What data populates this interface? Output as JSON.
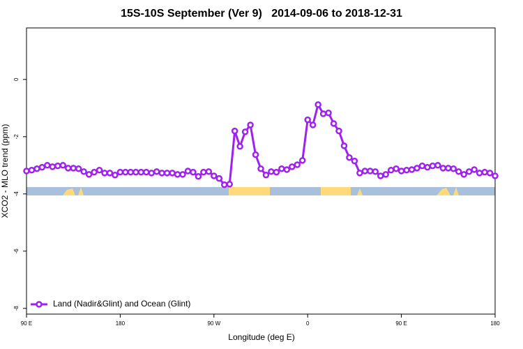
{
  "chart_data": {
    "type": "line",
    "title": "15S-10S September (Ver 9)   2014-09-06 to 2018-12-31",
    "xlabel": "Longitude (deg E)",
    "ylabel": "XCO2 - MLO trend (ppm)",
    "x": [
      90,
      95,
      100,
      105,
      110,
      115,
      120,
      125,
      130,
      135,
      140,
      145,
      150,
      155,
      160,
      165,
      170,
      175,
      180,
      185,
      190,
      195,
      200,
      205,
      210,
      215,
      220,
      225,
      230,
      235,
      240,
      245,
      250,
      255,
      260,
      265,
      270,
      275,
      280,
      285,
      290,
      295,
      300,
      305,
      310,
      315,
      320,
      325,
      330,
      335,
      340,
      345,
      350,
      355,
      360,
      365,
      370,
      375,
      380,
      385,
      390,
      395,
      400,
      405,
      410,
      415,
      420,
      425,
      430,
      435,
      440,
      445,
      450,
      455,
      460,
      465,
      470,
      475,
      480,
      485,
      490,
      495,
      500,
      505,
      510,
      515,
      520,
      525,
      530,
      535,
      540
    ],
    "series": [
      {
        "name": "Land (Nadir&Glint) and Ocean (Glint)",
        "color": "#a020f0",
        "values": [
          -3.2,
          -3.17,
          -3.12,
          -3.07,
          -3.0,
          -3.05,
          -3.02,
          -3.0,
          -3.1,
          -3.1,
          -3.12,
          -3.22,
          -3.32,
          -3.24,
          -3.17,
          -3.27,
          -3.27,
          -3.34,
          -3.24,
          -3.24,
          -3.24,
          -3.24,
          -3.24,
          -3.24,
          -3.27,
          -3.22,
          -3.27,
          -3.27,
          -3.27,
          -3.32,
          -3.32,
          -3.2,
          -3.24,
          -3.39,
          -3.24,
          -3.22,
          -3.37,
          -3.46,
          -3.68,
          -3.66,
          -1.8,
          -2.34,
          -1.83,
          -1.59,
          -2.63,
          -3.12,
          -3.34,
          -3.22,
          -3.24,
          -3.12,
          -3.15,
          -3.05,
          -2.98,
          -2.83,
          -1.41,
          -1.59,
          -0.88,
          -1.2,
          -1.17,
          -1.54,
          -1.8,
          -2.32,
          -2.73,
          -2.85,
          -3.27,
          -3.2,
          -3.2,
          -3.22,
          -3.37,
          -3.32,
          -3.17,
          -3.12,
          -3.2,
          -3.17,
          -3.15,
          -3.1,
          -3.02,
          -3.07,
          -3.02,
          -3.0,
          -3.1,
          -3.1,
          -3.12,
          -3.22,
          -3.32,
          -3.22,
          -3.15,
          -3.27,
          -3.24,
          -3.27,
          -3.37
        ]
      }
    ],
    "xlim": [
      90,
      540
    ],
    "xticks": [
      {
        "value": 90,
        "label": "90 E"
      },
      {
        "value": 180,
        "label": "180"
      },
      {
        "value": 270,
        "label": "90 W"
      },
      {
        "value": 360,
        "label": "0"
      },
      {
        "value": 450,
        "label": "90 E"
      },
      {
        "value": 540,
        "label": "180"
      }
    ],
    "ylim": [
      -8.2,
      1.8
    ],
    "yticks": [
      -8,
      -6,
      -4,
      -2,
      0
    ],
    "legend": "bottom-left"
  }
}
